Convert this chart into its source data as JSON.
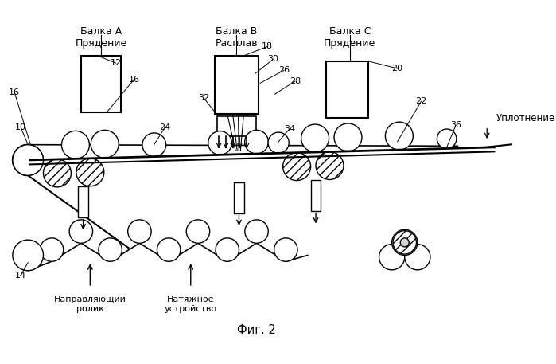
{
  "title": "Фиг. 2",
  "background_color": "#ffffff",
  "beam_a_label": "Балка А\nПрядение",
  "beam_b_label": "Балка В\nРасплав",
  "beam_c_label": "Балка С\nПрядение",
  "label_uplotneniye": "Уплотнение",
  "label_napravl": "Направляющий\nролик",
  "label_natyazh": "Натяжное\nустройство",
  "line_color": "#000000",
  "fig_width": 6.99,
  "fig_height": 4.57,
  "dpi": 100
}
